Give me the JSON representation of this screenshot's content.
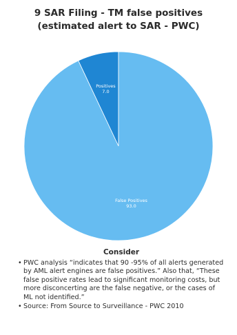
{
  "title": {
    "line1": "9 SAR Filing - TM false positives",
    "line2": "(estimated alert to SAR  - PWC)"
  },
  "chart_data": {
    "type": "pie",
    "categories": [
      "Positives",
      "False Positives"
    ],
    "values": [
      7.0,
      93.0
    ],
    "value_labels": [
      "7.0",
      "93.0"
    ],
    "colors": [
      "#1f86d3",
      "#66bcf1"
    ]
  },
  "notes": {
    "heading": "Consider",
    "bullet_glyph": "•",
    "items": [
      "PWC analysis “indicates that 90 -95% of all alerts generated by AML alert engines are false positives.” Also that, “These false positive rates lead to significant monitoring costs, but more disconcerting are the false negative, or the cases of ML not identified.”",
      "Source: From Source to Surveillance - PWC 2010"
    ]
  }
}
